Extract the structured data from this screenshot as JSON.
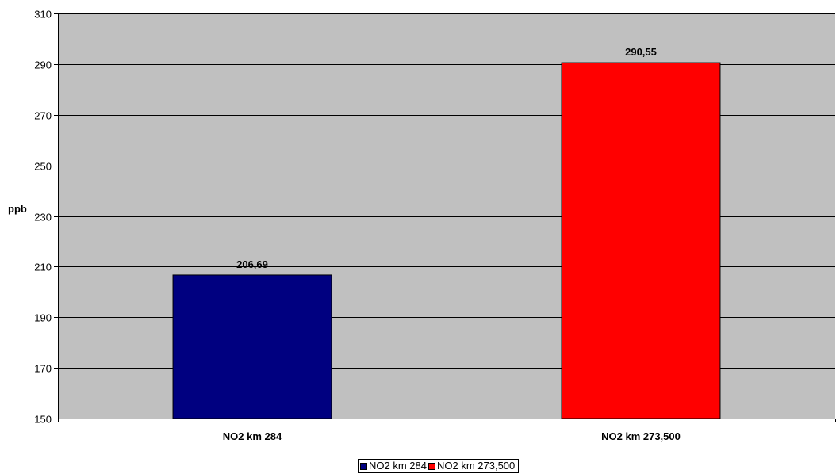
{
  "chart_data": {
    "type": "bar",
    "categories": [
      "NO2 km 284",
      "NO2 km 273,500"
    ],
    "values": [
      206.69,
      290.55
    ],
    "data_labels": [
      "206,69",
      "290,55"
    ],
    "title": "",
    "xlabel": "",
    "ylabel": "ppb",
    "ylim": [
      150,
      310
    ],
    "yticks": [
      150,
      170,
      190,
      210,
      230,
      250,
      270,
      290,
      310
    ],
    "grid": true,
    "legend_position": "bottom",
    "plot_background": "#c0c0c0",
    "colors": [
      "#000080",
      "#ff0000"
    ],
    "series": [
      {
        "name": "NO2 km 284",
        "color": "#000080"
      },
      {
        "name": "NO2 km 273,500",
        "color": "#ff0000"
      }
    ]
  }
}
